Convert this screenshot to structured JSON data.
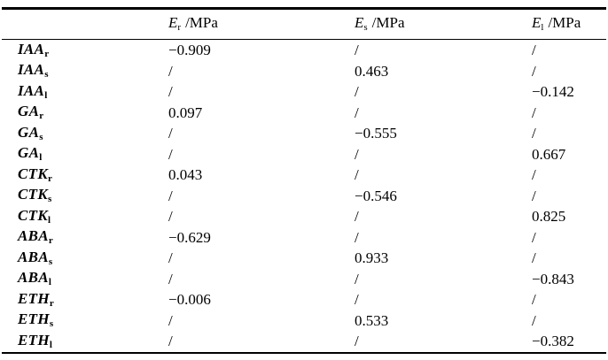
{
  "colors": {
    "background": "#ffffff",
    "text": "#000000",
    "rule": "#000000"
  },
  "table": {
    "columns": [
      {
        "base": "E",
        "sub": "r",
        "unit": "/MPa"
      },
      {
        "base": "E",
        "sub": "s",
        "unit": "/MPa"
      },
      {
        "base": "E",
        "sub": "l",
        "unit": "/MPa"
      }
    ],
    "rows": [
      {
        "label_base": "IAA",
        "label_sub": "r",
        "er": "−0.909",
        "es": "/",
        "el": "/"
      },
      {
        "label_base": "IAA",
        "label_sub": "s",
        "er": "/",
        "es": "0.463",
        "el": "/"
      },
      {
        "label_base": "IAA",
        "label_sub": "l",
        "er": "/",
        "es": "/",
        "el": "−0.142"
      },
      {
        "label_base": "GA",
        "label_sub": "r",
        "er": "0.097",
        "es": "/",
        "el": "/"
      },
      {
        "label_base": "GA",
        "label_sub": "s",
        "er": "/",
        "es": "−0.555",
        "el": "/"
      },
      {
        "label_base": "GA",
        "label_sub": "l",
        "er": "/",
        "es": "/",
        "el": "0.667"
      },
      {
        "label_base": "CTK",
        "label_sub": "r",
        "er": "0.043",
        "es": "/",
        "el": "/"
      },
      {
        "label_base": "CTK",
        "label_sub": "s",
        "er": "/",
        "es": "−0.546",
        "el": "/"
      },
      {
        "label_base": "CTK",
        "label_sub": "l",
        "er": "/",
        "es": "/",
        "el": "0.825"
      },
      {
        "label_base": "ABA",
        "label_sub": "r",
        "er": "−0.629",
        "es": "/",
        "el": "/"
      },
      {
        "label_base": "ABA",
        "label_sub": "s",
        "er": "/",
        "es": "0.933",
        "el": "/"
      },
      {
        "label_base": "ABA",
        "label_sub": "l",
        "er": "/",
        "es": "/",
        "el": "−0.843"
      },
      {
        "label_base": "ETH",
        "label_sub": "r",
        "er": "−0.006",
        "es": "/",
        "el": "/"
      },
      {
        "label_base": "ETH",
        "label_sub": "s",
        "er": "/",
        "es": "0.533",
        "el": "/"
      },
      {
        "label_base": "ETH",
        "label_sub": "l",
        "er": "/",
        "es": "/",
        "el": "−0.382"
      }
    ]
  }
}
